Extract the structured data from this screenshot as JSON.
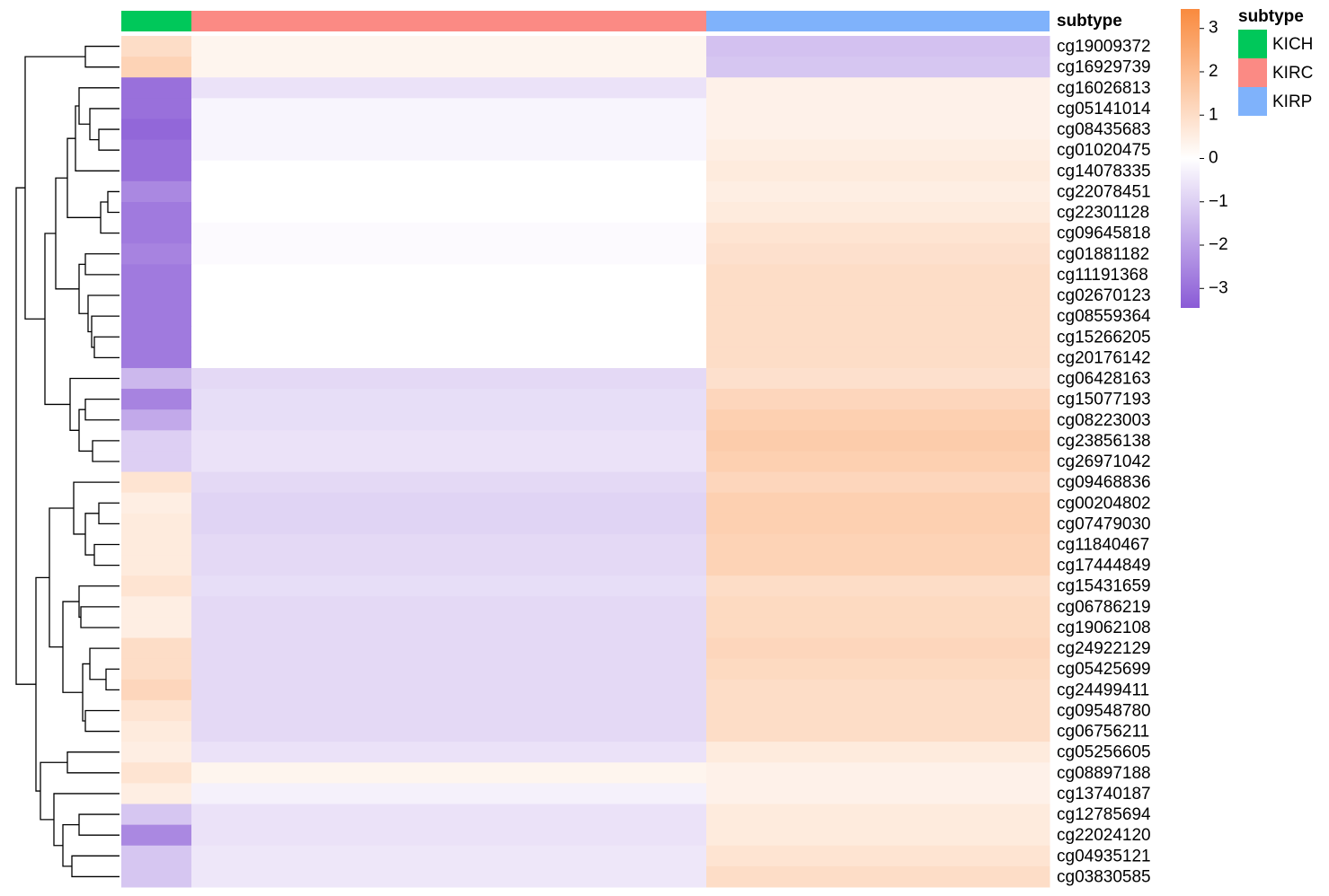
{
  "chart_data": {
    "type": "heatmap",
    "annotation": {
      "title": "subtype",
      "groups": [
        {
          "name": "KICH",
          "color": "#00c85a"
        },
        {
          "name": "KIRC",
          "color": "#fb8a84"
        },
        {
          "name": "KIRP",
          "color": "#7fb2fb"
        }
      ]
    },
    "rows": [
      "cg19009372",
      "cg16929739",
      "cg16026813",
      "cg05141014",
      "cg08435683",
      "cg01020475",
      "cg14078335",
      "cg22078451",
      "cg22301128",
      "cg09645818",
      "cg01881182",
      "cg11191368",
      "cg02670123",
      "cg08559364",
      "cg15266205",
      "cg20176142",
      "cg06428163",
      "cg15077193",
      "cg08223003",
      "cg23856138",
      "cg26971042",
      "cg09468836",
      "cg00204802",
      "cg07479030",
      "cg11840467",
      "cg17444849",
      "cg15431659",
      "cg06786219",
      "cg19062108",
      "cg24922129",
      "cg05425699",
      "cg24499411",
      "cg09548780",
      "cg06756211",
      "cg05256605",
      "cg08897188",
      "cg13740187",
      "cg12785694",
      "cg22024120",
      "cg04935121",
      "cg03830585"
    ],
    "values": [
      [
        1,
        0.3,
        -1.3
      ],
      [
        1.3,
        0.3,
        -1.2
      ],
      [
        -3,
        -0.6,
        0.4
      ],
      [
        -3,
        -0.2,
        0.4
      ],
      [
        -3.2,
        -0.2,
        0.4
      ],
      [
        -3,
        -0.2,
        0.5
      ],
      [
        -3,
        0,
        0.6
      ],
      [
        -2.5,
        0,
        0.5
      ],
      [
        -2.8,
        0,
        0.6
      ],
      [
        -2.8,
        -0.1,
        0.8
      ],
      [
        -2.6,
        -0.1,
        0.9
      ],
      [
        -2.8,
        0,
        1
      ],
      [
        -2.8,
        0,
        1
      ],
      [
        -2.8,
        0,
        1
      ],
      [
        -2.8,
        0,
        1
      ],
      [
        -2.8,
        0,
        1
      ],
      [
        -1.5,
        -0.8,
        0.9
      ],
      [
        -2.6,
        -0.7,
        1.2
      ],
      [
        -1.8,
        -0.7,
        1.4
      ],
      [
        -1,
        -0.6,
        1.5
      ],
      [
        -1,
        -0.6,
        1.4
      ],
      [
        0.8,
        -0.8,
        1.2
      ],
      [
        0.5,
        -0.9,
        1.4
      ],
      [
        0.6,
        -0.9,
        1.4
      ],
      [
        0.6,
        -0.8,
        1.3
      ],
      [
        0.6,
        -0.8,
        1.3
      ],
      [
        0.8,
        -0.7,
        1
      ],
      [
        0.5,
        -0.8,
        1.1
      ],
      [
        0.5,
        -0.8,
        1.1
      ],
      [
        1,
        -0.8,
        1.2
      ],
      [
        1,
        -0.8,
        1.1
      ],
      [
        1.2,
        -0.8,
        1
      ],
      [
        0.8,
        -0.8,
        1
      ],
      [
        0.6,
        -0.8,
        1
      ],
      [
        0.5,
        -0.6,
        0.6
      ],
      [
        0.8,
        0.3,
        0.4
      ],
      [
        0.5,
        -0.3,
        0.4
      ],
      [
        -1.2,
        -0.6,
        0.6
      ],
      [
        -2.5,
        -0.6,
        0.6
      ],
      [
        -1.2,
        -0.5,
        0.8
      ],
      [
        -1.2,
        -0.5,
        1
      ]
    ],
    "colors": [
      "#8a5bd6",
      "#ffffff",
      "#f98a3e"
    ],
    "clim": [
      -3.45,
      3.45
    ],
    "cticks": [
      3,
      2,
      1,
      0,
      {
        "value": -1,
        "label": "−1"
      },
      {
        "value": -2,
        "label": "−2"
      },
      {
        "value": -3,
        "label": "−3"
      }
    ]
  }
}
